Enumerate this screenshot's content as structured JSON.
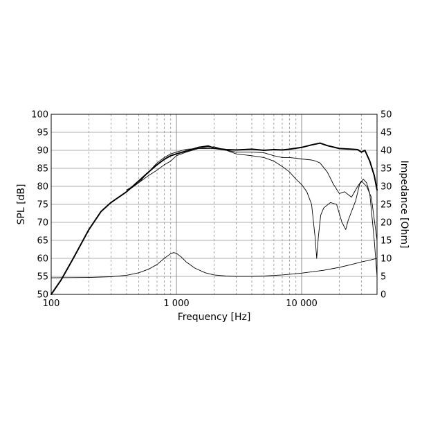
{
  "chart_data": {
    "type": "line",
    "xlabel": "Frequency [Hz]",
    "ylabel": "SPL [dB]",
    "y2label": "Impedance [Ohm]",
    "x_scale": "log",
    "xlim": [
      100,
      40000
    ],
    "ylim": [
      50,
      100
    ],
    "y2lim": [
      0,
      50
    ],
    "grid": true,
    "x_tick_labels": [
      {
        "value": 100,
        "label": "100"
      },
      {
        "value": 1000,
        "label": "1 000"
      },
      {
        "value": 10000,
        "label": "10 000"
      }
    ],
    "y_ticks": [
      50,
      55,
      60,
      65,
      70,
      75,
      80,
      85,
      90,
      95,
      100
    ],
    "y2_ticks": [
      0,
      5,
      10,
      15,
      20,
      25,
      30,
      35,
      40,
      45,
      50
    ],
    "series": [
      {
        "style": "bold",
        "axis": "left",
        "x": [
          100,
          120,
          150,
          200,
          250,
          300,
          400,
          500,
          600,
          700,
          800,
          900,
          1000,
          1200,
          1500,
          1800,
          2000,
          2500,
          3000,
          4000,
          5000,
          6000,
          7000,
          8000,
          10000,
          12000,
          14000,
          16000,
          20000,
          25000,
          28000,
          30000,
          32000,
          35000,
          38000,
          40000
        ],
        "y": [
          50,
          54,
          60,
          68,
          73,
          75.5,
          78.5,
          81.5,
          84,
          86,
          87.5,
          88.5,
          89,
          89.8,
          90.8,
          91.2,
          90.6,
          90.2,
          90.1,
          90.3,
          90,
          90.2,
          90.1,
          90.3,
          90.8,
          91.5,
          92,
          91.3,
          90.5,
          90.3,
          90.2,
          89.5,
          90,
          87,
          83,
          79
        ]
      },
      {
        "style": "thin",
        "axis": "left",
        "x": [
          400,
          500,
          600,
          700,
          800,
          900,
          1000,
          1200,
          1500,
          2000,
          2500,
          3000,
          4000,
          5000,
          6000,
          7000,
          8000,
          9000,
          10000,
          12000,
          13000,
          14000,
          16000,
          18000,
          20000,
          22000,
          25000,
          28000,
          30000,
          33000,
          36000,
          40000
        ],
        "y": [
          78.5,
          81,
          84,
          86.5,
          88,
          89,
          89.5,
          90.3,
          90.5,
          90.5,
          90,
          89.5,
          89.5,
          89.3,
          88.5,
          88,
          88,
          87.8,
          87.6,
          87.3,
          87,
          86.5,
          84,
          80.5,
          78,
          78.5,
          77,
          80,
          81.5,
          80,
          77,
          65
        ]
      },
      {
        "style": "thin",
        "axis": "left",
        "x": [
          400,
          500,
          600,
          700,
          800,
          900,
          1000,
          1200,
          1500,
          2000,
          2500,
          3000,
          4000,
          5000,
          6000,
          7000,
          8000,
          9000,
          10000,
          11000,
          12000,
          12800,
          13200,
          13600,
          14200,
          15000,
          17000,
          19000,
          21000,
          22500,
          23500,
          25000,
          27000,
          29000,
          31000,
          33000,
          35000,
          38000,
          40000
        ],
        "y": [
          79,
          81,
          83,
          84.5,
          86,
          87,
          88.5,
          89.5,
          90.5,
          91,
          90,
          89,
          88.5,
          88,
          87,
          85.5,
          84,
          82,
          80.5,
          78.5,
          75,
          66,
          60,
          66,
          72,
          74,
          75.5,
          75,
          70,
          68,
          70.5,
          73,
          76,
          80.5,
          82,
          81,
          78,
          65,
          55
        ]
      },
      {
        "style": "thin",
        "axis": "right",
        "x": [
          100,
          200,
          300,
          400,
          500,
          600,
          700,
          800,
          900,
          950,
          1000,
          1100,
          1200,
          1400,
          1700,
          2000,
          2500,
          3000,
          4000,
          5000,
          7000,
          10000,
          15000,
          20000,
          25000,
          30000,
          35000,
          40000
        ],
        "y": [
          4.6,
          4.7,
          4.9,
          5.3,
          6,
          7,
          8.3,
          10,
          11.3,
          11.6,
          11.4,
          10.3,
          9,
          7.3,
          6,
          5.4,
          5.1,
          5,
          5,
          5.1,
          5.4,
          5.9,
          6.7,
          7.5,
          8.3,
          9,
          9.5,
          10
        ]
      }
    ]
  }
}
